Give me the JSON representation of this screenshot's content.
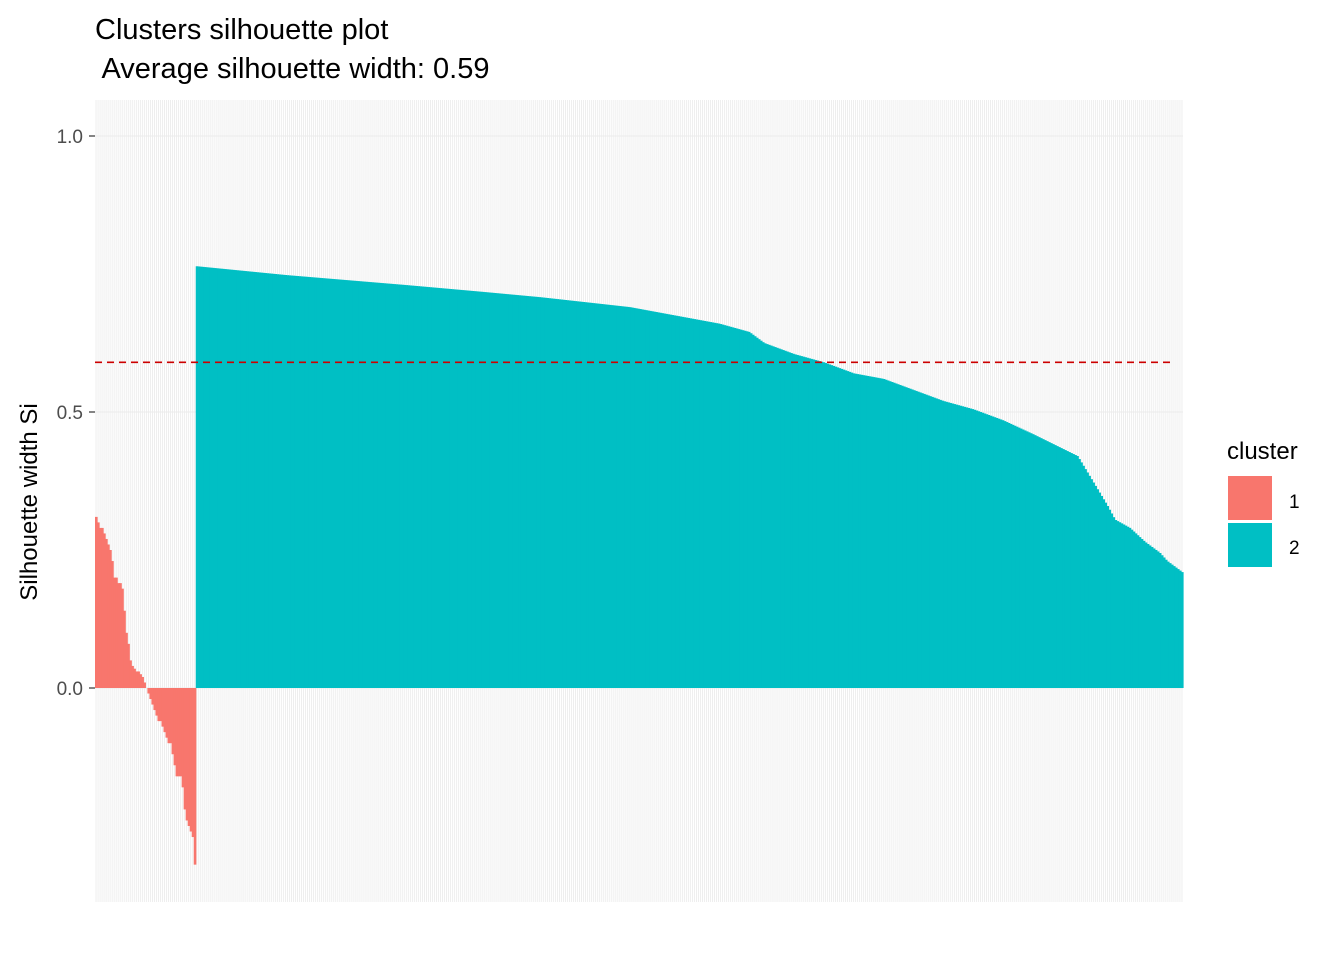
{
  "chart_data": {
    "type": "bar",
    "title": "Clusters silhouette plot",
    "subtitle": " Average silhouette width: 0.59",
    "xlabel": "",
    "ylabel": "Silhouette width Si",
    "ylim": [
      -0.38,
      1.06
    ],
    "y_ticks": [
      {
        "value": 0.0,
        "label": "0.0"
      },
      {
        "value": 0.5,
        "label": "0.5"
      },
      {
        "value": 1.0,
        "label": "1.0"
      }
    ],
    "average_line": {
      "value": 0.59,
      "color": "#CC0000",
      "style": "dashed"
    },
    "grid": true,
    "legend": {
      "title": "cluster",
      "position": "right",
      "entries": [
        {
          "label": "1",
          "color": "#F8766D"
        },
        {
          "label": "2",
          "color": "#00BFC4"
        }
      ]
    },
    "series": [
      {
        "name": "1",
        "color": "#F8766D",
        "values": [
          0.31,
          0.3,
          0.29,
          0.29,
          0.28,
          0.27,
          0.26,
          0.25,
          0.23,
          0.2,
          0.2,
          0.19,
          0.19,
          0.18,
          0.14,
          0.1,
          0.08,
          0.05,
          0.04,
          0.035,
          0.03,
          0.03,
          0.025,
          0.02,
          0.01,
          0.0,
          -0.01,
          -0.02,
          -0.03,
          -0.04,
          -0.05,
          -0.06,
          -0.06,
          -0.07,
          -0.08,
          -0.09,
          -0.1,
          -0.1,
          -0.12,
          -0.14,
          -0.16,
          -0.16,
          -0.16,
          -0.18,
          -0.22,
          -0.24,
          -0.25,
          -0.26,
          -0.27,
          -0.32
        ]
      },
      {
        "name": "2",
        "color": "#00BFC4",
        "anchors": [
          [
            0,
            0.764
          ],
          [
            60,
            0.748
          ],
          [
            140,
            0.73
          ],
          [
            190,
            0.718
          ],
          [
            230,
            0.708
          ],
          [
            290,
            0.69
          ],
          [
            330,
            0.67
          ],
          [
            350,
            0.66
          ],
          [
            370,
            0.645
          ],
          [
            380,
            0.625
          ],
          [
            400,
            0.605
          ],
          [
            420,
            0.59
          ],
          [
            440,
            0.57
          ],
          [
            460,
            0.56
          ],
          [
            480,
            0.54
          ],
          [
            500,
            0.52
          ],
          [
            520,
            0.505
          ],
          [
            540,
            0.485
          ],
          [
            560,
            0.46
          ],
          [
            590,
            0.42
          ],
          [
            610,
            0.33
          ],
          [
            615,
            0.305
          ],
          [
            625,
            0.29
          ],
          [
            635,
            0.265
          ],
          [
            645,
            0.245
          ],
          [
            650,
            0.23
          ],
          [
            660,
            0.21
          ]
        ]
      }
    ],
    "series_count": [
      50,
      490
    ]
  }
}
